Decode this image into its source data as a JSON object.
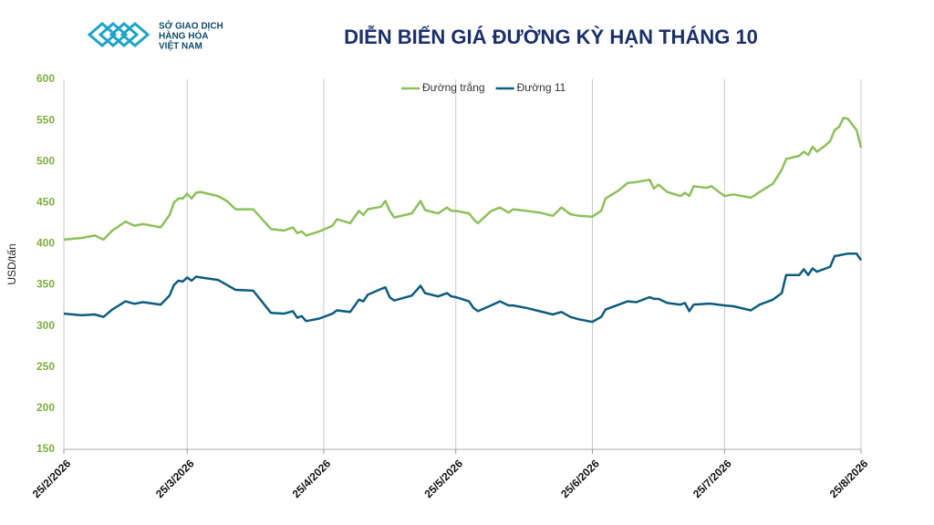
{
  "logo": {
    "lines": [
      "SỞ GIAO DỊCH",
      "HÀNG HÓA",
      "VIỆT NAM"
    ]
  },
  "chart_data": {
    "type": "line",
    "title": "DIỄN BIẾN GIÁ ĐƯỜNG KỲ HẠN THÁNG 10",
    "y_label": "USD/tấn",
    "x": [
      "2026-02-25",
      "2026-03-01",
      "2026-03-04",
      "2026-03-06",
      "2026-03-08",
      "2026-03-11",
      "2026-03-13",
      "2026-03-15",
      "2026-03-19",
      "2026-03-21",
      "2026-03-22",
      "2026-03-23",
      "2026-03-24",
      "2026-03-25",
      "2026-03-26",
      "2026-03-27",
      "2026-03-28",
      "2026-04-01",
      "2026-04-03",
      "2026-04-05",
      "2026-04-09",
      "2026-04-13",
      "2026-04-16",
      "2026-04-18",
      "2026-04-19",
      "2026-04-20",
      "2026-04-21",
      "2026-04-24",
      "2026-04-27",
      "2026-04-28",
      "2026-05-01",
      "2026-05-03",
      "2026-05-04",
      "2026-05-05",
      "2026-05-08",
      "2026-05-09",
      "2026-05-10",
      "2026-05-11",
      "2026-05-15",
      "2026-05-17",
      "2026-05-18",
      "2026-05-21",
      "2026-05-23",
      "2026-05-24",
      "2026-05-25",
      "2026-05-28",
      "2026-05-29",
      "2026-05-30",
      "2026-06-02",
      "2026-06-04",
      "2026-06-06",
      "2026-06-07",
      "2026-06-10",
      "2026-06-13",
      "2026-06-16",
      "2026-06-18",
      "2026-06-20",
      "2026-06-22",
      "2026-06-25",
      "2026-06-27",
      "2026-06-28",
      "2026-07-01",
      "2026-07-03",
      "2026-07-05",
      "2026-07-08",
      "2026-07-09",
      "2026-07-10",
      "2026-07-12",
      "2026-07-15",
      "2026-07-16",
      "2026-07-17",
      "2026-07-18",
      "2026-07-21",
      "2026-07-22",
      "2026-07-25",
      "2026-07-27",
      "2026-07-31",
      "2026-08-02",
      "2026-08-05",
      "2026-08-07",
      "2026-08-08",
      "2026-08-11",
      "2026-08-12",
      "2026-08-13",
      "2026-08-14",
      "2026-08-15",
      "2026-08-17",
      "2026-08-18",
      "2026-08-19",
      "2026-08-20",
      "2026-08-21",
      "2026-08-22",
      "2026-08-24",
      "2026-08-25"
    ],
    "series": [
      {
        "name": "Đường trắng",
        "color": "#8dc05a",
        "values": [
          405,
          407,
          410,
          405,
          416,
          427,
          422,
          424,
          420,
          435,
          450,
          455,
          455,
          461,
          455,
          462,
          463,
          458,
          452,
          442,
          442,
          418,
          416,
          420,
          413,
          415,
          410,
          415,
          422,
          430,
          425,
          440,
          435,
          442,
          445,
          452,
          440,
          432,
          437,
          452,
          441,
          437,
          444,
          440,
          440,
          437,
          430,
          425,
          440,
          444,
          438,
          442,
          440,
          438,
          434,
          444,
          436,
          434,
          433,
          440,
          455,
          465,
          474,
          475,
          478,
          467,
          472,
          463,
          458,
          462,
          458,
          470,
          468,
          470,
          458,
          460,
          456,
          463,
          473,
          490,
          503,
          507,
          512,
          508,
          518,
          512,
          520,
          525,
          538,
          542,
          553,
          552,
          538,
          517
        ]
      },
      {
        "name": "Đường 11",
        "color": "#0d5c7d",
        "values": [
          315,
          313,
          314,
          311,
          320,
          330,
          327,
          329,
          326,
          337,
          350,
          355,
          354,
          359,
          355,
          360,
          359,
          356,
          350,
          344,
          343,
          316,
          315,
          318,
          310,
          312,
          306,
          309,
          315,
          319,
          317,
          332,
          330,
          338,
          345,
          347,
          335,
          331,
          337,
          349,
          340,
          336,
          340,
          336,
          335,
          330,
          322,
          318,
          325,
          330,
          325,
          325,
          322,
          318,
          314,
          317,
          311,
          308,
          305,
          311,
          320,
          326,
          330,
          329,
          335,
          333,
          333,
          328,
          326,
          328,
          318,
          326,
          327,
          327,
          325,
          324,
          319,
          326,
          332,
          340,
          362,
          362,
          369,
          362,
          370,
          366,
          370,
          372,
          385,
          386,
          387,
          388,
          388,
          380
        ]
      }
    ],
    "xlim": [
      "2026-02-25",
      "2026-08-25"
    ],
    "xticks": [
      {
        "value": "2026-02-25",
        "label": "25/2/2026"
      },
      {
        "value": "2026-03-25",
        "label": "25/3/2026"
      },
      {
        "value": "2026-04-25",
        "label": "25/4/2026"
      },
      {
        "value": "2026-05-25",
        "label": "25/5/2026"
      },
      {
        "value": "2026-06-25",
        "label": "25/6/2026"
      },
      {
        "value": "2026-07-25",
        "label": "25/7/2026"
      },
      {
        "value": "2026-08-25",
        "label": "25/8/2026"
      }
    ],
    "ylim": [
      150,
      600
    ],
    "yticks": [
      150,
      200,
      250,
      300,
      350,
      400,
      450,
      500,
      550,
      600
    ],
    "grid": "x",
    "legend": "top"
  }
}
